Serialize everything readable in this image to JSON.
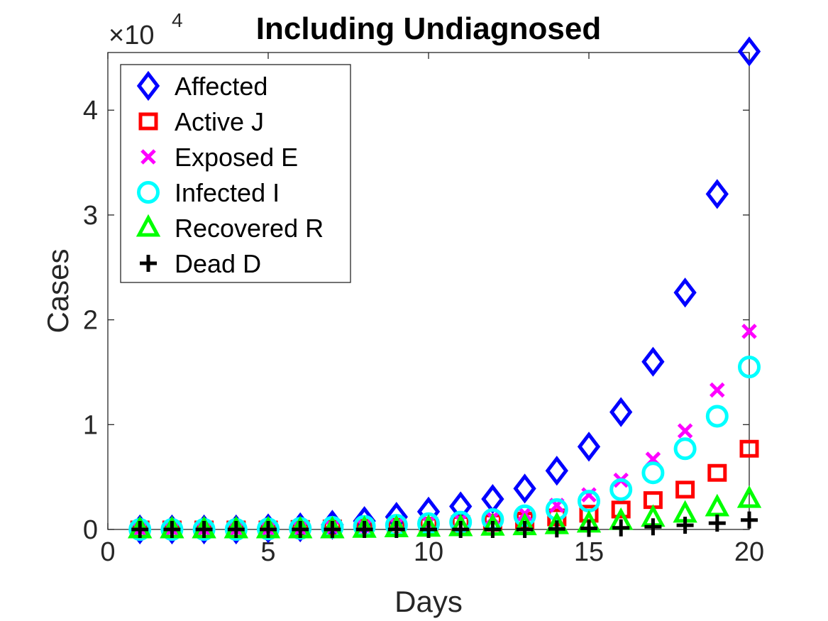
{
  "chart_data": {
    "type": "scatter",
    "title": "Including Undiagnosed",
    "xlabel": "Days",
    "ylabel": "Cases",
    "xlim": [
      0,
      20
    ],
    "ylim": [
      0,
      45500
    ],
    "xticks": [
      0,
      5,
      10,
      15,
      20
    ],
    "yticks": [
      0,
      10000,
      20000,
      30000,
      40000
    ],
    "ytick_labels": [
      "0",
      "1",
      "2",
      "3",
      "4"
    ],
    "y_exponent_base": "×10",
    "y_exponent_power": "4",
    "grid": false,
    "legend_position": "top-left",
    "x": [
      1,
      2,
      3,
      4,
      5,
      6,
      7,
      8,
      9,
      10,
      11,
      12,
      13,
      14,
      15,
      16,
      17,
      18,
      19,
      20
    ],
    "series": [
      {
        "name": "Affected",
        "marker": "diamond",
        "color": "#0000ff",
        "values": [
          0,
          0,
          0,
          0,
          100,
          200,
          450,
          800,
          1200,
          1700,
          2200,
          2900,
          3900,
          5600,
          7900,
          11200,
          16000,
          22600,
          32000,
          45600
        ]
      },
      {
        "name": "Active J",
        "marker": "square",
        "color": "#ff0000",
        "values": [
          0,
          0,
          0,
          0,
          0,
          50,
          100,
          150,
          250,
          350,
          500,
          650,
          850,
          1150,
          1500,
          1900,
          2800,
          3800,
          5400,
          7700
        ]
      },
      {
        "name": "Exposed E",
        "marker": "x",
        "color": "#ff00ff",
        "values": [
          0,
          0,
          0,
          0,
          50,
          100,
          200,
          300,
          450,
          650,
          850,
          1100,
          1500,
          2300,
          3300,
          4700,
          6700,
          9400,
          13300,
          18900
        ]
      },
      {
        "name": "Infected I",
        "marker": "circle",
        "color": "#00ffff",
        "values": [
          0,
          0,
          0,
          0,
          50,
          100,
          200,
          300,
          400,
          550,
          700,
          950,
          1300,
          1900,
          2700,
          3800,
          5400,
          7700,
          10800,
          15500
        ]
      },
      {
        "name": "Recovered R",
        "marker": "triangle",
        "color": "#00ff00",
        "values": [
          0,
          0,
          0,
          0,
          0,
          0,
          0,
          50,
          100,
          150,
          200,
          250,
          300,
          400,
          550,
          800,
          1100,
          1500,
          2100,
          2900
        ]
      },
      {
        "name": "Dead D",
        "marker": "plus",
        "color": "#000000",
        "values": [
          0,
          0,
          0,
          0,
          0,
          0,
          0,
          0,
          0,
          0,
          0,
          0,
          0,
          50,
          100,
          150,
          250,
          400,
          600,
          900
        ]
      }
    ]
  }
}
